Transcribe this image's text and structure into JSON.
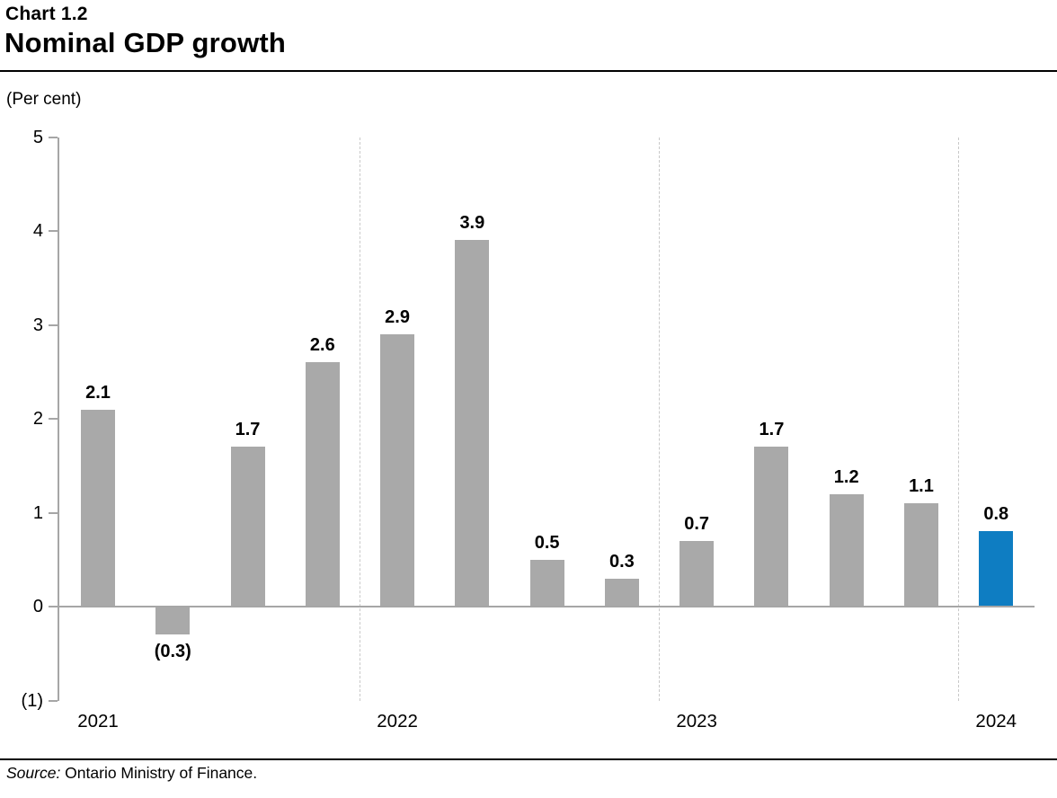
{
  "header": {
    "chart_number": "Chart 1.2",
    "title": "Nominal GDP growth"
  },
  "chart_data": {
    "type": "bar",
    "title": "Nominal GDP growth",
    "subtitle": "Chart 1.2",
    "xlabel": "",
    "ylabel": "(Per cent)",
    "ylim": [
      -1,
      5
    ],
    "yticks": [
      5,
      4,
      3,
      2,
      1,
      0,
      -1
    ],
    "ytick_labels": [
      "5",
      "4",
      "3",
      "2",
      "1",
      "0",
      "(1)"
    ],
    "x_year_labels": [
      "2021",
      "2022",
      "2023",
      "2024"
    ],
    "grid": "dashed vertical separators between years",
    "legend_position": "none",
    "bars": [
      {
        "year": "2021",
        "value": 2.1,
        "label": "2.1",
        "highlight": false
      },
      {
        "year": "2021",
        "value": -0.3,
        "label": "(0.3)",
        "highlight": false
      },
      {
        "year": "2021",
        "value": 1.7,
        "label": "1.7",
        "highlight": false
      },
      {
        "year": "2021",
        "value": 2.6,
        "label": "2.6",
        "highlight": false
      },
      {
        "year": "2022",
        "value": 2.9,
        "label": "2.9",
        "highlight": false
      },
      {
        "year": "2022",
        "value": 3.9,
        "label": "3.9",
        "highlight": false
      },
      {
        "year": "2022",
        "value": 0.5,
        "label": "0.5",
        "highlight": false
      },
      {
        "year": "2022",
        "value": 0.3,
        "label": "0.3",
        "highlight": false
      },
      {
        "year": "2023",
        "value": 0.7,
        "label": "0.7",
        "highlight": false
      },
      {
        "year": "2023",
        "value": 1.7,
        "label": "1.7",
        "highlight": false
      },
      {
        "year": "2023",
        "value": 1.2,
        "label": "1.2",
        "highlight": false
      },
      {
        "year": "2023",
        "value": 1.1,
        "label": "1.1",
        "highlight": false
      },
      {
        "year": "2024",
        "value": 0.8,
        "label": "0.8",
        "highlight": true
      }
    ],
    "colors": {
      "bar": "#a9a9a9",
      "highlight": "#0e7dc2",
      "axis": "#a6a6a6",
      "separator": "#c9c9c9",
      "text": "#000000"
    }
  },
  "footer": {
    "source_prefix": "Source:",
    "source_text": " Ontario Ministry of Finance."
  }
}
